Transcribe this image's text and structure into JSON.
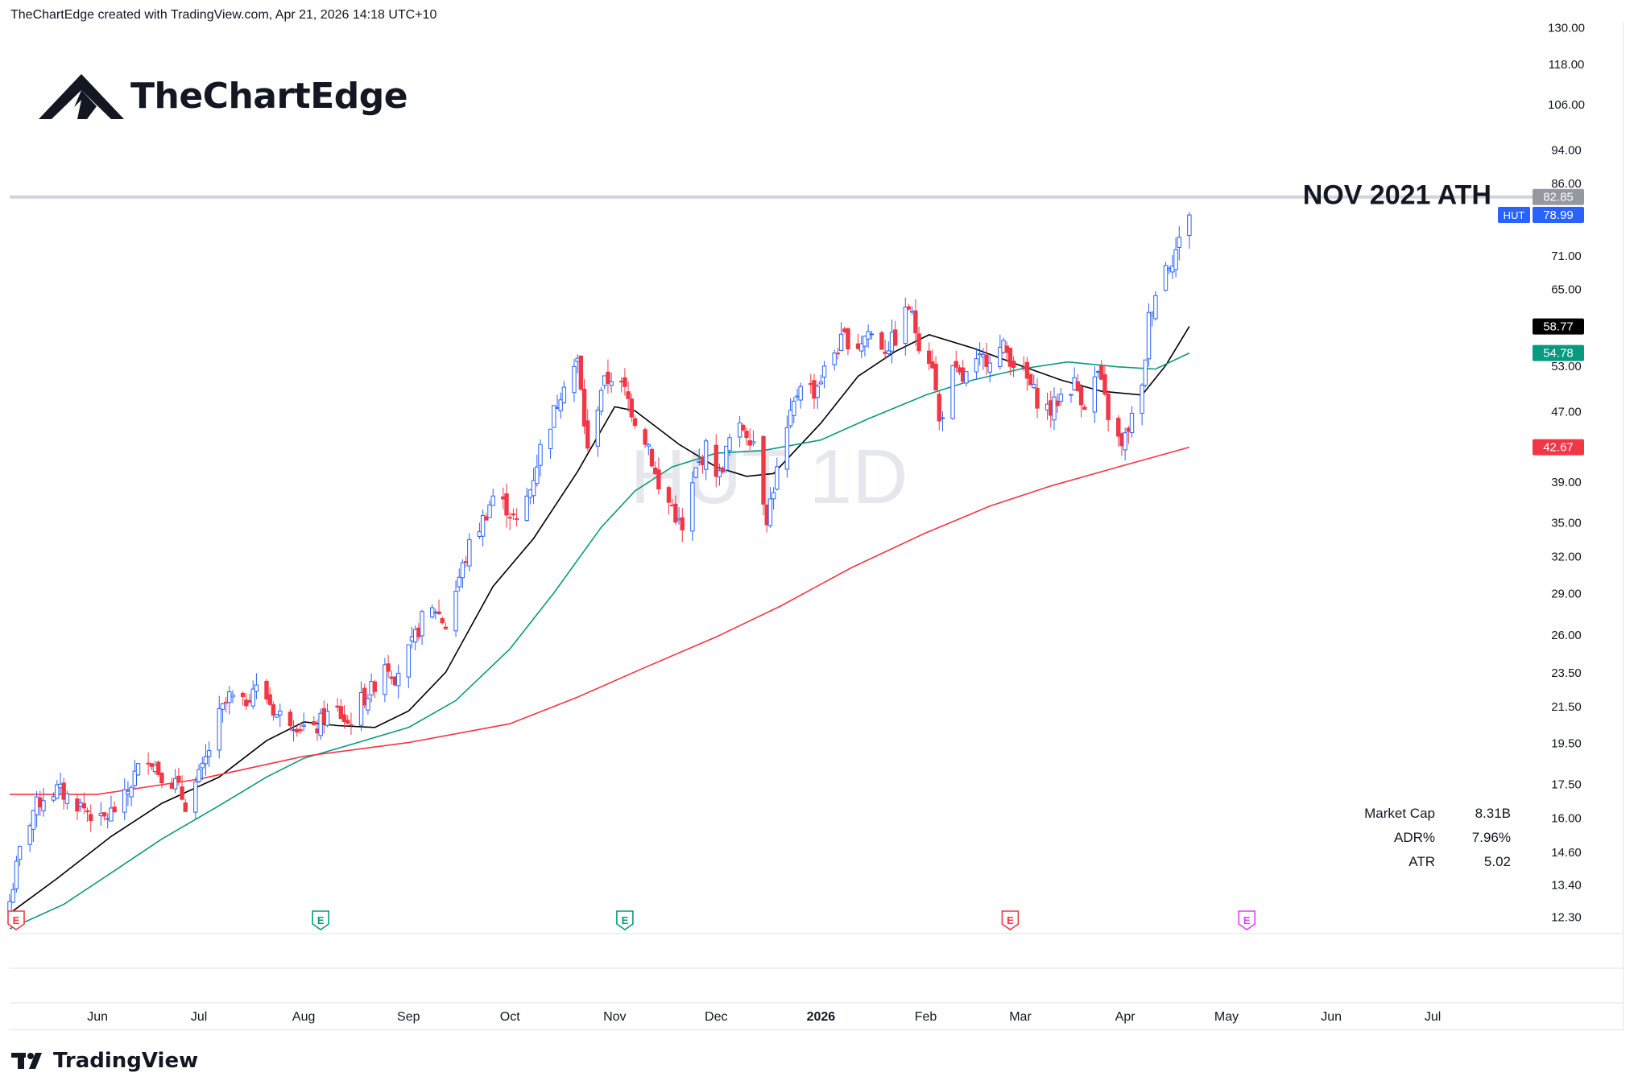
{
  "header": {
    "credit": "TheChartEdge created with TradingView.com, Apr 21, 2026 14:18 UTC+10"
  },
  "brand": {
    "name": "TheChartEdge",
    "icon": "mountain-logo-icon"
  },
  "footer": {
    "name": "TradingView",
    "icon": "tradingview-logo-icon"
  },
  "watermark": "HUT 1D",
  "colors": {
    "up": "#2962ff",
    "down": "#f23645",
    "ma_fast": "#000000",
    "ma_mid": "#089981",
    "ma_slow": "#f23645",
    "ath_line": "#d1d4dc"
  },
  "chart_data": {
    "type": "candlestick",
    "symbol": "HUT",
    "interval": "1D",
    "yscale": "log",
    "ylim": [
      11.8,
      131
    ],
    "y_ticks": [
      "130.00",
      "118.00",
      "106.00",
      "94.00",
      "86.00",
      "71.00",
      "65.00",
      "53.00",
      "47.00",
      "39.00",
      "35.00",
      "32.00",
      "29.00",
      "26.00",
      "23.50",
      "21.50",
      "19.50",
      "17.50",
      "16.00",
      "14.60",
      "13.40",
      "12.30"
    ],
    "x_labels": [
      {
        "label": "Jun",
        "date": "2025-06-01"
      },
      {
        "label": "Jul",
        "date": "2025-07-01"
      },
      {
        "label": "Aug",
        "date": "2025-08-01"
      },
      {
        "label": "Sep",
        "date": "2025-09-01"
      },
      {
        "label": "Oct",
        "date": "2025-10-01"
      },
      {
        "label": "Nov",
        "date": "2025-11-01"
      },
      {
        "label": "Dec",
        "date": "2025-12-01"
      },
      {
        "label": "2026",
        "date": "2026-01-01"
      },
      {
        "label": "Feb",
        "date": "2026-02-01"
      },
      {
        "label": "Mar",
        "date": "2026-03-01"
      },
      {
        "label": "Apr",
        "date": "2026-04-01"
      },
      {
        "label": "May",
        "date": "2026-05-01"
      },
      {
        "label": "Jun",
        "date": "2026-06-01"
      },
      {
        "label": "Jul",
        "date": "2026-07-01"
      }
    ],
    "xlim": [
      "2025-05-06",
      "2026-07-31"
    ],
    "close_path": [
      [
        "2025-05-06",
        12.8
      ],
      [
        "2025-05-09",
        14.6
      ],
      [
        "2025-05-13",
        16.3
      ],
      [
        "2025-05-16",
        16.9
      ],
      [
        "2025-05-20",
        17.2
      ],
      [
        "2025-05-23",
        16.9
      ],
      [
        "2025-05-28",
        16.4
      ],
      [
        "2025-06-02",
        15.8
      ],
      [
        "2025-06-05",
        16.2
      ],
      [
        "2025-06-09",
        16.8
      ],
      [
        "2025-06-12",
        17.9
      ],
      [
        "2025-06-16",
        18.9
      ],
      [
        "2025-06-19",
        18.1
      ],
      [
        "2025-06-24",
        17.5
      ],
      [
        "2025-06-27",
        16.6
      ],
      [
        "2025-07-02",
        18.1
      ],
      [
        "2025-07-07",
        20.9
      ],
      [
        "2025-07-10",
        22.0
      ],
      [
        "2025-07-14",
        21.5
      ],
      [
        "2025-07-17",
        22.6
      ],
      [
        "2025-07-21",
        22.0
      ],
      [
        "2025-07-24",
        21.0
      ],
      [
        "2025-07-28",
        20.8
      ],
      [
        "2025-07-31",
        20.4
      ],
      [
        "2025-08-04",
        20.0
      ],
      [
        "2025-08-07",
        20.9
      ],
      [
        "2025-08-11",
        21.2
      ],
      [
        "2025-08-14",
        20.5
      ],
      [
        "2025-08-18",
        21.8
      ],
      [
        "2025-08-21",
        22.4
      ],
      [
        "2025-08-25",
        24.2
      ],
      [
        "2025-08-28",
        23.3
      ],
      [
        "2025-09-02",
        25.2
      ],
      [
        "2025-09-05",
        27.0
      ],
      [
        "2025-09-09",
        27.8
      ],
      [
        "2025-09-12",
        26.6
      ],
      [
        "2025-09-16",
        30.2
      ],
      [
        "2025-09-19",
        32.8
      ],
      [
        "2025-09-23",
        35.2
      ],
      [
        "2025-09-26",
        37.5
      ],
      [
        "2025-09-30",
        36.4
      ],
      [
        "2025-10-03",
        34.8
      ],
      [
        "2025-10-07",
        38.2
      ],
      [
        "2025-10-10",
        42.5
      ],
      [
        "2025-10-14",
        46.8
      ],
      [
        "2025-10-17",
        51.0
      ],
      [
        "2025-10-21",
        53.5
      ],
      [
        "2025-10-24",
        42.0
      ],
      [
        "2025-10-28",
        50.0
      ],
      [
        "2025-10-31",
        51.5
      ],
      [
        "2025-11-04",
        49.5
      ],
      [
        "2025-11-07",
        46.0
      ],
      [
        "2025-11-11",
        43.0
      ],
      [
        "2025-11-14",
        38.0
      ],
      [
        "2025-11-18",
        36.5
      ],
      [
        "2025-11-21",
        34.0
      ],
      [
        "2025-11-25",
        40.0
      ],
      [
        "2025-11-28",
        42.5
      ],
      [
        "2025-12-02",
        39.5
      ],
      [
        "2025-12-05",
        43.5
      ],
      [
        "2025-12-09",
        45.0
      ],
      [
        "2025-12-12",
        43.5
      ],
      [
        "2025-12-16",
        35.5
      ],
      [
        "2025-12-19",
        40.0
      ],
      [
        "2025-12-23",
        46.0
      ],
      [
        "2025-12-26",
        51.0
      ],
      [
        "2025-12-30",
        49.5
      ],
      [
        "2026-01-05",
        55.0
      ],
      [
        "2026-01-08",
        57.0
      ],
      [
        "2026-01-12",
        56.0
      ],
      [
        "2026-01-15",
        58.0
      ],
      [
        "2026-01-20",
        55.5
      ],
      [
        "2026-01-23",
        57.0
      ],
      [
        "2026-01-27",
        62.0
      ],
      [
        "2026-01-30",
        56.5
      ],
      [
        "2026-02-03",
        53.5
      ],
      [
        "2026-02-05",
        45.5
      ],
      [
        "2026-02-09",
        52.0
      ],
      [
        "2026-02-12",
        51.0
      ],
      [
        "2026-02-17",
        53.5
      ],
      [
        "2026-02-20",
        54.5
      ],
      [
        "2026-02-24",
        55.5
      ],
      [
        "2026-02-27",
        53.5
      ],
      [
        "2026-03-03",
        51.0
      ],
      [
        "2026-03-06",
        48.5
      ],
      [
        "2026-03-10",
        47.0
      ],
      [
        "2026-03-13",
        49.0
      ],
      [
        "2026-03-17",
        50.5
      ],
      [
        "2026-03-20",
        48.0
      ],
      [
        "2026-03-24",
        52.0
      ],
      [
        "2026-03-27",
        46.5
      ],
      [
        "2026-03-31",
        42.5
      ],
      [
        "2026-04-02",
        45.0
      ],
      [
        "2026-04-06",
        49.5
      ],
      [
        "2026-04-08",
        60.0
      ],
      [
        "2026-04-10",
        64.5
      ],
      [
        "2026-04-13",
        69.0
      ],
      [
        "2026-04-15",
        70.5
      ],
      [
        "2026-04-17",
        73.5
      ],
      [
        "2026-04-20",
        78.99
      ]
    ],
    "series": [
      {
        "name": "",
        "color": "#000000",
        "points": [
          [
            "2025-05-06",
            12.4
          ],
          [
            "2025-05-20",
            13.6
          ],
          [
            "2025-06-05",
            15.2
          ],
          [
            "2025-06-20",
            16.6
          ],
          [
            "2025-07-07",
            17.8
          ],
          [
            "2025-07-21",
            19.6
          ],
          [
            "2025-08-01",
            20.6
          ],
          [
            "2025-08-11",
            20.4
          ],
          [
            "2025-08-22",
            20.3
          ],
          [
            "2025-09-01",
            21.2
          ],
          [
            "2025-09-12",
            23.5
          ],
          [
            "2025-09-26",
            29.5
          ],
          [
            "2025-10-08",
            33.5
          ],
          [
            "2025-10-21",
            40.0
          ],
          [
            "2025-11-01",
            47.5
          ],
          [
            "2025-11-07",
            47.0
          ],
          [
            "2025-11-20",
            43.0
          ],
          [
            "2025-12-01",
            40.5
          ],
          [
            "2025-12-10",
            39.5
          ],
          [
            "2025-12-18",
            39.8
          ],
          [
            "2026-01-01",
            45.5
          ],
          [
            "2026-01-12",
            51.5
          ],
          [
            "2026-01-23",
            55.0
          ],
          [
            "2026-02-02",
            57.5
          ],
          [
            "2026-02-15",
            55.5
          ],
          [
            "2026-03-01",
            53.0
          ],
          [
            "2026-03-13",
            51.0
          ],
          [
            "2026-03-25",
            49.5
          ],
          [
            "2026-04-06",
            49.0
          ],
          [
            "2026-04-13",
            53.0
          ],
          [
            "2026-04-20",
            58.77
          ]
        ]
      },
      {
        "name": "",
        "color": "#089981",
        "points": [
          [
            "2025-05-06",
            11.9
          ],
          [
            "2025-05-22",
            12.7
          ],
          [
            "2025-06-05",
            13.8
          ],
          [
            "2025-06-20",
            15.1
          ],
          [
            "2025-07-07",
            16.5
          ],
          [
            "2025-07-21",
            17.8
          ],
          [
            "2025-08-01",
            18.7
          ],
          [
            "2025-08-15",
            19.4
          ],
          [
            "2025-09-01",
            20.3
          ],
          [
            "2025-09-15",
            21.8
          ],
          [
            "2025-10-01",
            25.0
          ],
          [
            "2025-10-14",
            29.0
          ],
          [
            "2025-10-28",
            34.5
          ],
          [
            "2025-11-07",
            38.0
          ],
          [
            "2025-11-18",
            40.5
          ],
          [
            "2025-12-01",
            42.0
          ],
          [
            "2025-12-15",
            42.3
          ],
          [
            "2026-01-01",
            43.5
          ],
          [
            "2026-01-15",
            46.0
          ],
          [
            "2026-02-01",
            49.0
          ],
          [
            "2026-02-15",
            51.0
          ],
          [
            "2026-03-01",
            52.5
          ],
          [
            "2026-03-15",
            53.5
          ],
          [
            "2026-03-30",
            52.8
          ],
          [
            "2026-04-10",
            52.5
          ],
          [
            "2026-04-20",
            54.78
          ]
        ]
      },
      {
        "name": "",
        "color": "#f23645",
        "points": [
          [
            "2025-05-06",
            17.0
          ],
          [
            "2025-06-01",
            17.0
          ],
          [
            "2025-07-01",
            17.7
          ],
          [
            "2025-08-01",
            18.8
          ],
          [
            "2025-09-01",
            19.5
          ],
          [
            "2025-10-01",
            20.5
          ],
          [
            "2025-10-21",
            22.0
          ],
          [
            "2025-11-10",
            23.8
          ],
          [
            "2025-12-01",
            25.8
          ],
          [
            "2025-12-20",
            28.0
          ],
          [
            "2026-01-10",
            31.0
          ],
          [
            "2026-02-01",
            34.0
          ],
          [
            "2026-02-20",
            36.5
          ],
          [
            "2026-03-10",
            38.5
          ],
          [
            "2026-03-30",
            40.5
          ],
          [
            "2026-04-20",
            42.67
          ]
        ]
      }
    ],
    "price_badges": [
      {
        "value": "82.85",
        "bg": "#9598a1",
        "fg": "#ffffff"
      },
      {
        "value": "78.99",
        "symbol": "HUT",
        "bg": "#2962ff",
        "fg": "#ffffff"
      },
      {
        "value": "58.77",
        "bg": "#000000",
        "fg": "#ffffff"
      },
      {
        "value": "54.78",
        "bg": "#089981",
        "fg": "#ffffff"
      },
      {
        "value": "42.67",
        "bg": "#f23645",
        "fg": "#ffffff"
      }
    ],
    "annotation": {
      "text": "NOV 2021 ATH",
      "value": 82.85
    },
    "earnings": [
      {
        "date": "2025-05-07",
        "color": "#f23645",
        "label": "E"
      },
      {
        "date": "2025-08-06",
        "color": "#089981",
        "label": "E"
      },
      {
        "date": "2025-11-04",
        "color": "#089981",
        "label": "E"
      },
      {
        "date": "2026-02-26",
        "color": "#f23645",
        "label": "E"
      },
      {
        "date": "2026-05-07",
        "color": "#e040fb",
        "label": "E"
      }
    ],
    "stats": [
      {
        "label": "Market Cap",
        "value": "8.31B"
      },
      {
        "label": "ADR%",
        "value": "7.96%"
      },
      {
        "label": "ATR",
        "value": "5.02"
      }
    ]
  }
}
